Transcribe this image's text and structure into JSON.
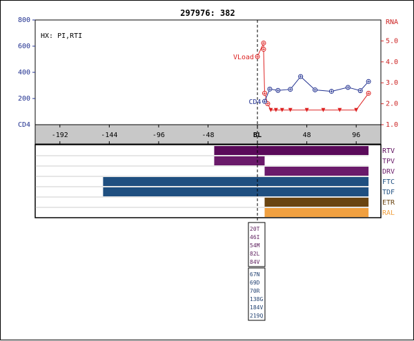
{
  "chart_data": {
    "type": "line",
    "title": "297976: 382",
    "annotation": "HX: PI,RTI",
    "left_axis": {
      "label": "CD4",
      "ticks": [
        "200",
        "400",
        "600",
        "800"
      ],
      "tick_values": [
        200,
        400,
        600,
        800
      ],
      "range": [
        0,
        800
      ],
      "color": "#1f2f8f"
    },
    "right_axis": {
      "label": "RNA",
      "ticks": [
        "1.0",
        "2.0",
        "3.0",
        "4.0",
        "5.0"
      ],
      "tick_values": [
        1.0,
        2.0,
        3.0,
        4.0,
        5.0
      ],
      "range": [
        1.0,
        6.0
      ],
      "color": "#cc2222"
    },
    "x_axis": {
      "ticks": [
        "-192",
        "-144",
        "-96",
        "-48",
        "BL",
        "48",
        "96"
      ],
      "tick_values": [
        -192,
        -144,
        -96,
        -48,
        0,
        48,
        96
      ],
      "range": [
        -216,
        120
      ]
    },
    "baseline_x": 0,
    "series": [
      {
        "name": "VLoad",
        "axis": "right",
        "color": "#dd2222",
        "x": [
          0,
          6,
          6,
          7,
          10,
          13,
          18,
          24,
          32,
          48,
          64,
          80,
          96,
          108
        ],
        "y": [
          4.25,
          4.9,
          4.6,
          2.5,
          2.0,
          1.7,
          1.7,
          1.7,
          1.7,
          1.7,
          1.7,
          1.7,
          1.7,
          2.5
        ],
        "markers": [
          "circle",
          "circle",
          "circle",
          "circle",
          "circle",
          "triangle",
          "triangle",
          "triangle",
          "triangle",
          "triangle",
          "triangle",
          "triangle",
          "triangle",
          "circle"
        ]
      },
      {
        "name": "CD4",
        "axis": "left",
        "color": "#1f2f8f",
        "x": [
          7,
          12,
          20,
          32,
          42,
          56,
          72,
          88,
          100,
          108
        ],
        "y": [
          178,
          272,
          262,
          270,
          368,
          266,
          255,
          285,
          260,
          330
        ]
      }
    ],
    "regimens": [
      {
        "name": "RTV",
        "color": "#5a0a5a",
        "start": -42,
        "end": 108
      },
      {
        "name": "TPV",
        "color": "#6a1a6a",
        "start": -42,
        "end": 7
      },
      {
        "name": "DRV",
        "color": "#6a1a6a",
        "start": 7,
        "end": 108
      },
      {
        "name": "FTC",
        "color": "#1f4f80",
        "start": -150,
        "end": 108
      },
      {
        "name": "TDF",
        "color": "#1f4f80",
        "start": -150,
        "end": 108
      },
      {
        "name": "ETR",
        "color": "#6a4410",
        "start": 7,
        "end": 108
      },
      {
        "name": "RAL",
        "color": "#f0a040",
        "start": 7,
        "end": 108
      }
    ],
    "mutation_groups": [
      {
        "color": "#5a1a5a",
        "mutations": [
          "20T",
          "46I",
          "54M",
          "82L",
          "84V"
        ]
      },
      {
        "color": "#1f3f6f",
        "mutations": [
          "67N",
          "69D",
          "70R",
          "138G",
          "184V",
          "219Q"
        ]
      }
    ]
  }
}
